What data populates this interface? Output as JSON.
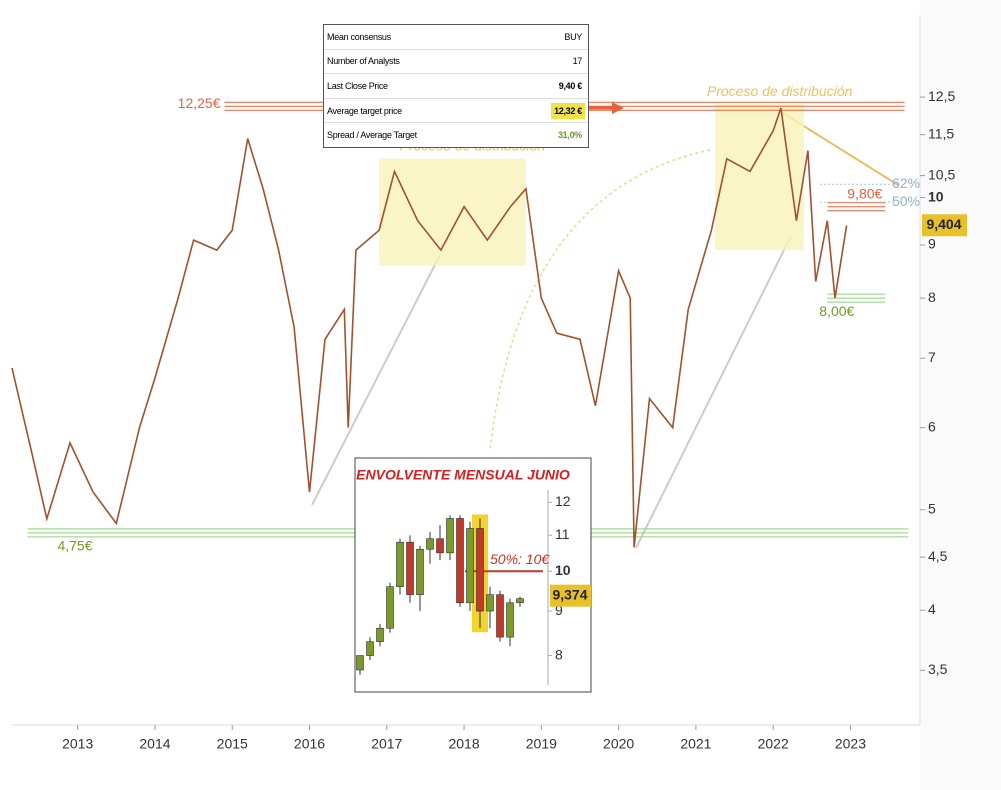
{
  "chart_data": [
    {
      "type": "line",
      "x": [
        2012.15,
        2012.4,
        2012.6,
        2012.9,
        2013.2,
        2013.5,
        2013.8,
        2014.0,
        2014.3,
        2014.5,
        2014.8,
        2015.0,
        2015.2,
        2015.4,
        2015.6,
        2015.8,
        2016.0,
        2016.2,
        2016.45,
        2016.5,
        2016.6,
        2016.9,
        2017.1,
        2017.4,
        2017.7,
        2018.0,
        2018.3,
        2018.6,
        2018.8,
        2019.0,
        2019.2,
        2019.5,
        2019.7,
        2020.0,
        2020.15,
        2020.2,
        2020.4,
        2020.7,
        2020.9,
        2021.2,
        2021.4,
        2021.7,
        2022.0,
        2022.1,
        2022.3,
        2022.45,
        2022.55,
        2022.7,
        2022.8,
        2022.95
      ],
      "values": [
        6.85,
        5.7,
        4.9,
        5.8,
        5.2,
        4.85,
        6.0,
        6.7,
        8.0,
        9.1,
        8.9,
        9.3,
        11.4,
        10.2,
        8.9,
        7.5,
        5.2,
        7.3,
        7.8,
        6.0,
        8.9,
        9.3,
        10.6,
        9.5,
        8.9,
        9.8,
        9.1,
        9.8,
        10.2,
        8.0,
        7.4,
        7.3,
        6.3,
        8.5,
        8.0,
        4.6,
        6.4,
        6.0,
        7.8,
        9.3,
        10.9,
        10.6,
        11.6,
        12.2,
        9.5,
        11.1,
        8.3,
        9.5,
        8.0,
        9.4
      ],
      "color": "#a0522d",
      "xlim": [
        2012.15,
        2023.9
      ],
      "xticks": [
        2013,
        2014,
        2015,
        2016,
        2017,
        2018,
        2019,
        2020,
        2021,
        2022,
        2023
      ],
      "ylim": [
        3.1,
        15
      ],
      "log_y": true,
      "yticks": [
        {
          "value": 3.5,
          "label": "3,5"
        },
        4,
        {
          "value": 4.5,
          "label": "4,5"
        },
        5,
        6,
        7,
        8,
        9,
        10,
        {
          "value": 10.5,
          "label": "10,5"
        },
        {
          "value": 11.5,
          "label": "11,5"
        },
        {
          "value": 12.5,
          "label": "12,5"
        }
      ],
      "levels": [
        {
          "label": "12,25€",
          "value": 12.25,
          "x": [
            2014.9,
            2023.7
          ],
          "color": "#e8603c"
        },
        {
          "label": "4,75€",
          "value": 4.75,
          "x": [
            2012.35,
            2023.75
          ],
          "color": "#8fd27a"
        },
        {
          "label": "9,80€",
          "value": 9.8,
          "x": [
            2022.7,
            2023.45
          ],
          "color": "#e8603c"
        },
        {
          "label": "8,00€",
          "value": 8.0,
          "x": [
            2022.7,
            2023.45
          ],
          "color": "#8fd27a"
        }
      ],
      "fib_levels": [
        {
          "label": "62%",
          "value": 10.3
        },
        {
          "label": "50%",
          "value": 9.9
        }
      ],
      "zones": [
        {
          "label": "Proceso de distribución",
          "x": [
            2016.9,
            2018.8
          ],
          "y": [
            8.6,
            10.9
          ]
        },
        {
          "label": "Proceso de distribución",
          "x": [
            2021.25,
            2022.4
          ],
          "y": [
            8.9,
            12.3
          ]
        }
      ],
      "last_price": {
        "value": 9.404,
        "label": "9,404"
      }
    },
    {
      "type": "candlestick",
      "title": "ENVOLVENTE MENSUAL JUNIO",
      "open": [
        7.7,
        8.0,
        8.3,
        8.6,
        9.6,
        10.8,
        9.4,
        10.6,
        10.9,
        10.5,
        11.5,
        9.2,
        11.2,
        9.0,
        9.4,
        8.4,
        9.2
      ],
      "high": [
        8.0,
        8.4,
        8.7,
        9.7,
        10.9,
        11.0,
        10.7,
        11.1,
        11.3,
        11.6,
        11.6,
        11.4,
        11.5,
        9.6,
        9.5,
        9.3,
        9.35
      ],
      "low": [
        7.6,
        7.9,
        8.2,
        8.5,
        9.4,
        9.2,
        9.0,
        10.2,
        10.3,
        10.3,
        9.1,
        9.0,
        8.6,
        8.6,
        8.3,
        8.2,
        9.1
      ],
      "close": [
        8.0,
        8.3,
        8.6,
        9.6,
        10.8,
        9.4,
        10.6,
        10.9,
        10.5,
        11.5,
        9.2,
        11.2,
        9.0,
        9.4,
        8.4,
        9.2,
        9.3
      ],
      "up_color": "#7a9a2a",
      "down_color": "#c0392b",
      "ylim": [
        7.4,
        12.4
      ],
      "log_y": true,
      "yticks": [
        8,
        9,
        10,
        11,
        12
      ],
      "highlight": 12,
      "level": {
        "value": 10,
        "label": "50%: 10€"
      },
      "last_price": {
        "value": 9.374,
        "label": "9,374"
      }
    }
  ],
  "table": {
    "rows": [
      [
        "Mean consensus",
        "BUY"
      ],
      [
        "Number of Analysts",
        "17"
      ],
      [
        "Last Close Price",
        "9,40 €"
      ],
      [
        "Average target price",
        "12,32 €"
      ],
      [
        "Spread / Average Target",
        "31,0%"
      ]
    ]
  }
}
